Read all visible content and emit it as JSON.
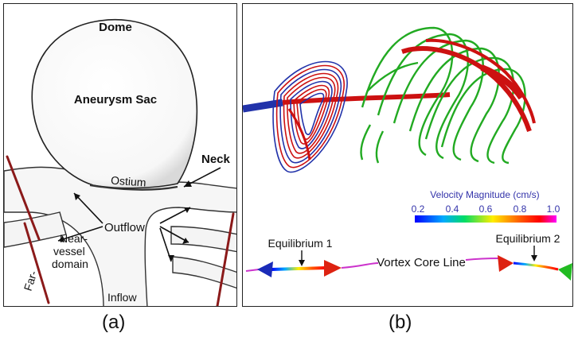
{
  "panel_a": {
    "caption": "(a)",
    "labels": {
      "dome": "Dome",
      "aneurysm_sac": "Aneurysm Sac",
      "neck": "Neck",
      "ostium": "Ostium",
      "outflow": "Outflow",
      "inflow": "Inflow",
      "far": "Far-",
      "near_vessel_1": "Near-",
      "near_vessel_2": "vessel",
      "near_vessel_3": "domain"
    }
  },
  "panel_b": {
    "caption": "(b)",
    "colorbar": {
      "title": "Velocity Magnitude (cm/s)",
      "ticks": [
        "0.2",
        "0.4",
        "0.6",
        "0.8",
        "1.0"
      ]
    },
    "labels": {
      "equilibrium_1": "Equilibrium 1",
      "equilibrium_2": "Equilibrium 2",
      "vortex_core_line": "Vortex Core Line"
    }
  },
  "colors": {
    "streamline_red": "#cc1111",
    "streamline_green": "#22aa22",
    "streamline_blue": "#2233aa",
    "core_line": "#cc33cc",
    "vessel_marker": "#8b1a1a"
  }
}
